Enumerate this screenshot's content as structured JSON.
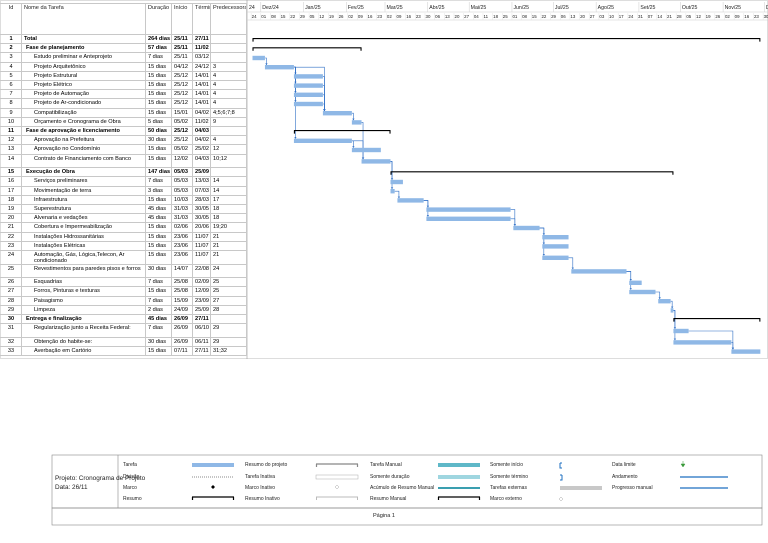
{
  "table": {
    "headers": [
      "Id",
      "Nome da Tarefa",
      "Duração",
      "Início",
      "Término",
      "Predecessoras"
    ],
    "rows": [
      {
        "id": 1,
        "name": "Total",
        "duration": "264 dias",
        "start": "25/11",
        "finish": "27/11",
        "summary": true
      },
      {
        "id": 2,
        "name": "Fase de planejamento",
        "duration": "57 dias",
        "start": "25/11",
        "finish": "11/02",
        "summary": true
      },
      {
        "id": 3,
        "name": "Estudo preliminar e Anteprojeto",
        "duration": "7 dias",
        "start": "25/11",
        "finish": "03/12"
      },
      {
        "id": 4,
        "name": "Projeto Arquitetônico",
        "duration": "15 dias",
        "start": "04/12",
        "finish": "24/12",
        "predecessors": "3"
      },
      {
        "id": 5,
        "name": "Projeto Estrutural",
        "duration": "15 dias",
        "start": "25/12",
        "finish": "14/01",
        "predecessors": "4"
      },
      {
        "id": 6,
        "name": "Projeto Elétrico",
        "duration": "15 dias",
        "start": "25/12",
        "finish": "14/01",
        "predecessors": "4"
      },
      {
        "id": 7,
        "name": "Projeto de Automação",
        "duration": "15 dias",
        "start": "25/12",
        "finish": "14/01",
        "predecessors": "4"
      },
      {
        "id": 8,
        "name": "Projeto de Ar-condicionado",
        "duration": "15 dias",
        "start": "25/12",
        "finish": "14/01",
        "predecessors": "4"
      },
      {
        "id": 9,
        "name": "Compatibilização",
        "duration": "15 dias",
        "start": "15/01",
        "finish": "04/02",
        "predecessors": "4;5;6;7;8"
      },
      {
        "id": 10,
        "name": "Orçamento e Cronograma de Obra",
        "duration": "5 dias",
        "start": "05/02",
        "finish": "11/02",
        "predecessors": "9"
      },
      {
        "id": 11,
        "name": "Fase de aprovação e licenciamento",
        "duration": "50 dias",
        "start": "25/12",
        "finish": "04/03",
        "summary": true
      },
      {
        "id": 12,
        "name": "Aprovação na Prefeitura",
        "duration": "30 dias",
        "start": "25/12",
        "finish": "04/02",
        "predecessors": "4"
      },
      {
        "id": 13,
        "name": "Aprovação no Condomínio",
        "duration": "15 dias",
        "start": "05/02",
        "finish": "25/02",
        "predecessors": "12"
      },
      {
        "id": 14,
        "name": "Contrato de Financiamento com Banco",
        "duration": "15 dias",
        "start": "12/02",
        "finish": "04/03",
        "predecessors": "10;12"
      },
      {
        "id": 15,
        "name": "Execução de Obra",
        "duration": "147 dias",
        "start": "05/03",
        "finish": "25/09",
        "summary": true
      },
      {
        "id": 16,
        "name": "Serviços preliminares",
        "duration": "7 dias",
        "start": "05/03",
        "finish": "13/03",
        "predecessors": "14"
      },
      {
        "id": 17,
        "name": "Movimentação de terra",
        "duration": "3 dias",
        "start": "05/03",
        "finish": "07/03",
        "predecessors": "14"
      },
      {
        "id": 18,
        "name": "Infraestrutura",
        "duration": "15 dias",
        "start": "10/03",
        "finish": "28/03",
        "predecessors": "17"
      },
      {
        "id": 19,
        "name": "Superestrutura",
        "duration": "45 dias",
        "start": "31/03",
        "finish": "30/05",
        "predecessors": "18"
      },
      {
        "id": 20,
        "name": "Alvenaria e vedações",
        "duration": "45 dias",
        "start": "31/03",
        "finish": "30/05",
        "predecessors": "18"
      },
      {
        "id": 21,
        "name": "Cobertura e Impermeabilização",
        "duration": "15 dias",
        "start": "02/06",
        "finish": "20/06",
        "predecessors": "19;20"
      },
      {
        "id": 22,
        "name": "Instalações Hidrossanitárias",
        "duration": "15 dias",
        "start": "23/06",
        "finish": "11/07",
        "predecessors": "21"
      },
      {
        "id": 23,
        "name": "Instalações Elétricas",
        "duration": "15 dias",
        "start": "23/06",
        "finish": "11/07",
        "predecessors": "21"
      },
      {
        "id": 24,
        "name": "Automação, Gás, Lógica,Telecon, Ar condicionado",
        "duration": "15 dias",
        "start": "23/06",
        "finish": "11/07",
        "predecessors": "21"
      },
      {
        "id": 25,
        "name": "Revestimentos para paredes pisos e forros",
        "duration": "30 dias",
        "start": "14/07",
        "finish": "22/08",
        "predecessors": "24"
      },
      {
        "id": 26,
        "name": "Esquadrias",
        "duration": "7 dias",
        "start": "25/08",
        "finish": "02/09",
        "predecessors": "25"
      },
      {
        "id": 27,
        "name": "Forros, Pinturas e texturas",
        "duration": "15 dias",
        "start": "25/08",
        "finish": "12/09",
        "predecessors": "25"
      },
      {
        "id": 28,
        "name": "Paisagismo",
        "duration": "7 dias",
        "start": "15/09",
        "finish": "23/09",
        "predecessors": "27"
      },
      {
        "id": 29,
        "name": "Limpeza",
        "duration": "2 dias",
        "start": "24/09",
        "finish": "25/09",
        "predecessors": "28"
      },
      {
        "id": 30,
        "name": "Entrega e finalização",
        "duration": "45 dias",
        "start": "26/09",
        "finish": "27/11",
        "summary": true
      },
      {
        "id": 31,
        "name": "Regularização junto a Receita Federal:",
        "duration": "7 dias",
        "start": "26/09",
        "finish": "06/10",
        "predecessors": "29"
      },
      {
        "id": 32,
        "name": "Obtenção do habite-se:",
        "duration": "30 dias",
        "start": "26/09",
        "finish": "06/11",
        "predecessors": "29"
      },
      {
        "id": 33,
        "name": "Averbação em Cartório",
        "duration": "15 dias",
        "start": "07/11",
        "finish": "27/11",
        "predecessors": "31;32"
      }
    ]
  },
  "timeline": {
    "months": [
      "24",
      "Dez/24",
      "Jan/25",
      "Fev/25",
      "Mar/25",
      "Abr/25",
      "Mai/25",
      "Jun/25",
      "Jul/25",
      "Ago/25",
      "Set/25",
      "Out/25",
      "Nov/25",
      "De"
    ],
    "weeks": [
      "24",
      "01",
      "08",
      "15",
      "22",
      "29",
      "05",
      "12",
      "19",
      "26",
      "02",
      "09",
      "16",
      "23",
      "02",
      "09",
      "16",
      "23",
      "30",
      "06",
      "13",
      "20",
      "27",
      "04",
      "11",
      "18",
      "25",
      "01",
      "08",
      "15",
      "22",
      "29",
      "06",
      "13",
      "20",
      "27",
      "03",
      "10",
      "17",
      "24",
      "31",
      "07",
      "14",
      "21",
      "28",
      "05",
      "12",
      "19",
      "26",
      "02",
      "09",
      "16",
      "23",
      "30"
    ]
  },
  "legend": {
    "project": "Projeto: Cronograma de Projeto",
    "date": "Data: 26/11",
    "items": [
      "Tarefa",
      "Divisão",
      "Marco",
      "Resumo",
      "Resumo do projeto",
      "Tarefa Inativa",
      "Marco Inativo",
      "Resumo Inativo",
      "Tarefa Manual",
      "Somente duração",
      "Acúmulo de Resumo Manual",
      "Resumo Manual",
      "Somente início",
      "Somente término",
      "Tarefas externas",
      "Marco externo",
      "Data limite",
      "Andamento",
      "Progresso manual"
    ]
  },
  "footer": "Página 1"
}
